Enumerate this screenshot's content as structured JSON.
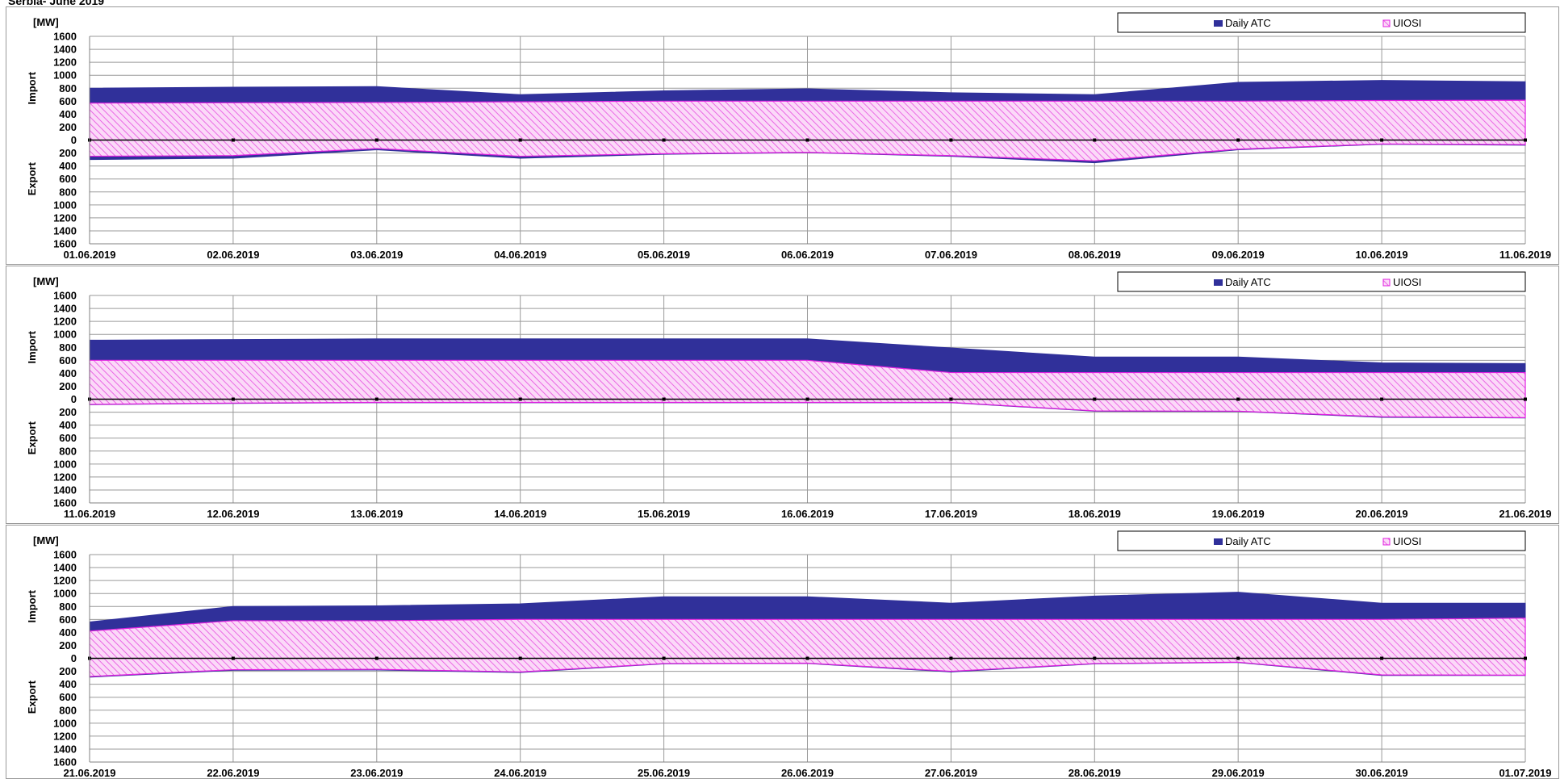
{
  "page_title": "Serbia- June 2019",
  "colors": {
    "daily_atc": "#30309a",
    "uiosi": "#e020e0",
    "uiosi_fill": "#f7c6f4",
    "grid": "#9a9a9a",
    "axis": "#000000"
  },
  "legend": {
    "daily_atc": "Daily ATC",
    "uiosi": "UIOSI"
  },
  "chart_data": [
    {
      "type": "area",
      "unit": "[MW]",
      "ylabel_top": "Import",
      "ylabel_bottom": "Export",
      "yticks": [
        "1600",
        "1400",
        "1200",
        "1000",
        "800",
        "600",
        "400",
        "200",
        "0",
        "200",
        "400",
        "600",
        "800",
        "1000",
        "1200",
        "1400",
        "1600"
      ],
      "ylim": [
        -1600,
        1600
      ],
      "categories": [
        "01.06.2019",
        "02.06.2019",
        "03.06.2019",
        "04.06.2019",
        "05.06.2019",
        "06.06.2019",
        "07.06.2019",
        "08.06.2019",
        "09.06.2019",
        "10.06.2019",
        "11.06.2019"
      ],
      "series": [
        {
          "name": "Daily ATC",
          "import": [
            800,
            815,
            825,
            700,
            760,
            790,
            730,
            700,
            890,
            920,
            900
          ],
          "export": [
            -300,
            -280,
            -150,
            -280,
            -220,
            -195,
            -250,
            -350,
            -150,
            -65,
            -80
          ]
        },
        {
          "name": "UIOSI",
          "import": [
            570,
            575,
            580,
            590,
            600,
            600,
            600,
            600,
            600,
            610,
            615
          ],
          "export": [
            -250,
            -240,
            -130,
            -250,
            -210,
            -190,
            -240,
            -320,
            -140,
            -60,
            -70
          ]
        }
      ],
      "legend_position": "top-right"
    },
    {
      "type": "area",
      "unit": "[MW]",
      "ylabel_top": "Import",
      "ylabel_bottom": "Export",
      "yticks": [
        "1600",
        "1400",
        "1200",
        "1000",
        "800",
        "600",
        "400",
        "200",
        "0",
        "200",
        "400",
        "600",
        "800",
        "1000",
        "1200",
        "1400",
        "1600"
      ],
      "ylim": [
        -1600,
        1600
      ],
      "categories": [
        "11.06.2019",
        "12.06.2019",
        "13.06.2019",
        "14.06.2019",
        "15.06.2019",
        "16.06.2019",
        "17.06.2019",
        "18.06.2019",
        "19.06.2019",
        "20.06.2019",
        "21.06.2019"
      ],
      "series": [
        {
          "name": "Daily ATC",
          "import": [
            910,
            920,
            930,
            930,
            930,
            930,
            790,
            650,
            650,
            560,
            550
          ],
          "export": [
            -85,
            -65,
            -55,
            -55,
            -55,
            -55,
            -55,
            -185,
            -190,
            -280,
            -290
          ]
        },
        {
          "name": "UIOSI",
          "import": [
            600,
            600,
            600,
            600,
            600,
            600,
            410,
            410,
            410,
            410,
            410
          ],
          "export": [
            -80,
            -60,
            -50,
            -50,
            -50,
            -50,
            -50,
            -180,
            -185,
            -270,
            -285
          ]
        }
      ],
      "legend_position": "top-right"
    },
    {
      "type": "area",
      "unit": "[MW]",
      "ylabel_top": "Import",
      "ylabel_bottom": "Export",
      "yticks": [
        "1600",
        "1400",
        "1200",
        "1000",
        "800",
        "600",
        "400",
        "200",
        "0",
        "200",
        "400",
        "600",
        "800",
        "1000",
        "1200",
        "1400",
        "1600"
      ],
      "ylim": [
        -1600,
        1600
      ],
      "categories": [
        "21.06.2019",
        "22.06.2019",
        "23.06.2019",
        "24.06.2019",
        "25.06.2019",
        "26.06.2019",
        "27.06.2019",
        "28.06.2019",
        "29.06.2019",
        "30.06.2019",
        "01.07.2019"
      ],
      "series": [
        {
          "name": "Daily ATC",
          "import": [
            560,
            800,
            810,
            840,
            950,
            950,
            850,
            960,
            1020,
            850,
            850
          ],
          "export": [
            -290,
            -185,
            -180,
            -220,
            -85,
            -80,
            -210,
            -85,
            -65,
            -265,
            -265
          ]
        },
        {
          "name": "UIOSI",
          "import": [
            420,
            580,
            580,
            600,
            600,
            600,
            600,
            600,
            600,
            600,
            620
          ],
          "export": [
            -280,
            -175,
            -170,
            -210,
            -80,
            -75,
            -200,
            -80,
            -60,
            -255,
            -260
          ]
        }
      ],
      "legend_position": "top-right"
    }
  ]
}
